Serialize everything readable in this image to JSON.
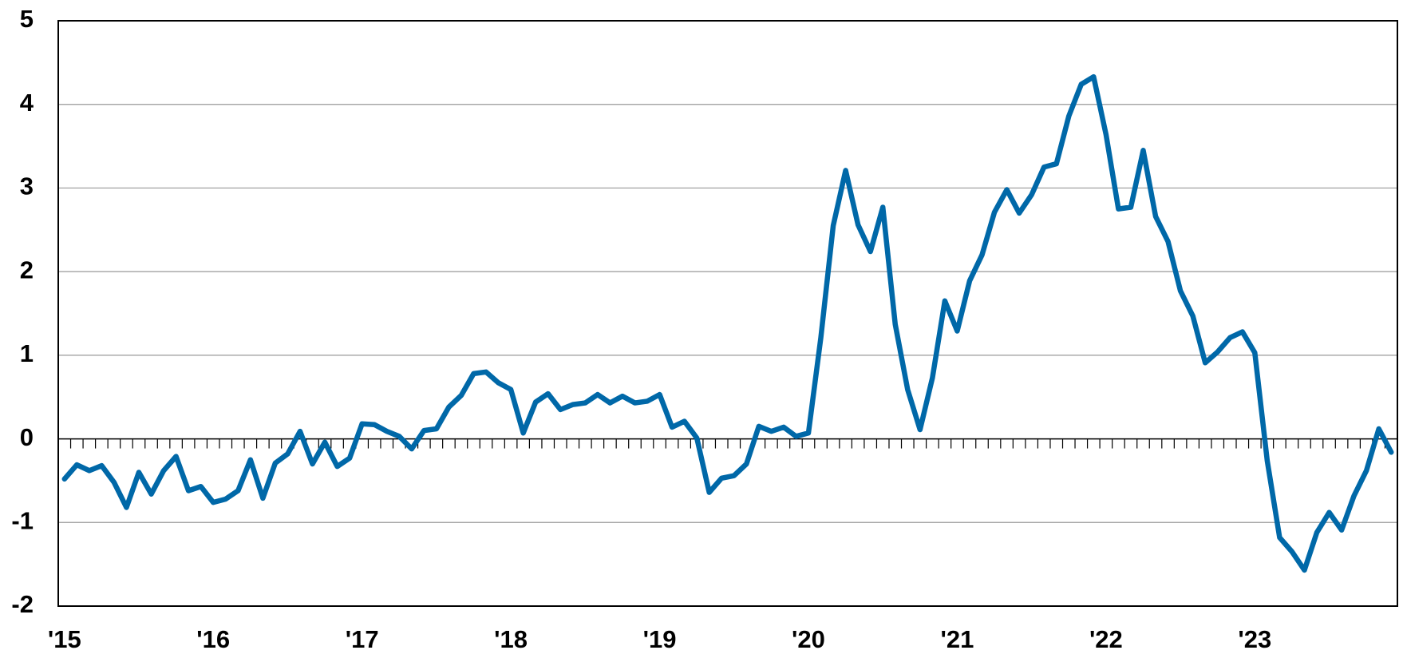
{
  "chart_data": {
    "type": "line",
    "categories": [
      "'15",
      null,
      null,
      null,
      null,
      null,
      null,
      null,
      null,
      null,
      null,
      null,
      "'16",
      null,
      null,
      null,
      null,
      null,
      null,
      null,
      null,
      null,
      null,
      null,
      "'17",
      null,
      null,
      null,
      null,
      null,
      null,
      null,
      null,
      null,
      null,
      null,
      "'18",
      null,
      null,
      null,
      null,
      null,
      null,
      null,
      null,
      null,
      null,
      null,
      "'19",
      null,
      null,
      null,
      null,
      null,
      null,
      null,
      null,
      null,
      null,
      null,
      "'20",
      null,
      null,
      null,
      null,
      null,
      null,
      null,
      null,
      null,
      null,
      null,
      "'21",
      null,
      null,
      null,
      null,
      null,
      null,
      null,
      null,
      null,
      null,
      null,
      "'22",
      null,
      null,
      null,
      null,
      null,
      null,
      null,
      null,
      null,
      null,
      null,
      "'23",
      null,
      null,
      null,
      null,
      null,
      null,
      null,
      null,
      null,
      null,
      null
    ],
    "series": [
      {
        "color": "#0068a8",
        "values": [
          -0.48,
          -0.31,
          -0.38,
          -0.32,
          -0.52,
          -0.82,
          -0.4,
          -0.66,
          -0.38,
          -0.21,
          -0.62,
          -0.57,
          -0.76,
          -0.72,
          -0.62,
          -0.25,
          -0.71,
          -0.29,
          -0.18,
          0.09,
          -0.3,
          -0.04,
          -0.33,
          -0.23,
          0.18,
          0.17,
          0.09,
          0.03,
          -0.12,
          0.1,
          0.12,
          0.38,
          0.52,
          0.78,
          0.8,
          0.67,
          0.59,
          0.07,
          0.44,
          0.54,
          0.35,
          0.41,
          0.43,
          0.53,
          0.43,
          0.51,
          0.43,
          0.45,
          0.53,
          0.14,
          0.21,
          0.01,
          -0.64,
          -0.47,
          -0.44,
          -0.3,
          0.15,
          0.09,
          0.14,
          0.03,
          0.07,
          1.21,
          2.55,
          3.21,
          2.56,
          2.24,
          2.77,
          1.37,
          0.59,
          0.11,
          0.73,
          1.65,
          1.29,
          1.89,
          2.2,
          2.71,
          2.98,
          2.7,
          2.92,
          3.25,
          3.29,
          3.86,
          4.24,
          4.33,
          3.64,
          2.75,
          2.77,
          3.45,
          2.66,
          2.36,
          1.77,
          1.47,
          0.91,
          1.04,
          1.21,
          1.28,
          1.03,
          -0.26,
          -1.18,
          -1.35,
          -1.57,
          -1.12,
          -0.88,
          -1.09,
          -0.68,
          -0.38,
          0.12,
          -0.16
        ]
      }
    ],
    "ylim": [
      -2,
      5
    ],
    "yticks": [
      -2,
      -1,
      0,
      1,
      2,
      3,
      4,
      5
    ],
    "grid": true
  }
}
